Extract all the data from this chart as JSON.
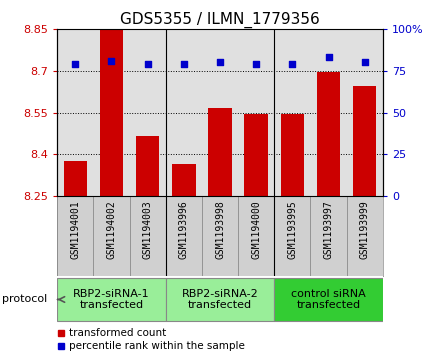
{
  "title": "GDS5355 / ILMN_1779356",
  "samples": [
    "GSM1194001",
    "GSM1194002",
    "GSM1194003",
    "GSM1193996",
    "GSM1193998",
    "GSM1194000",
    "GSM1193995",
    "GSM1193997",
    "GSM1193999"
  ],
  "bar_values": [
    8.375,
    8.845,
    8.465,
    8.365,
    8.565,
    8.545,
    8.545,
    8.695,
    8.645
  ],
  "percentile_values": [
    79,
    81,
    79,
    79,
    80,
    79,
    79,
    83,
    80
  ],
  "ylim_left": [
    8.25,
    8.85
  ],
  "ylim_right": [
    0,
    100
  ],
  "yticks_left": [
    8.25,
    8.4,
    8.55,
    8.7,
    8.85
  ],
  "yticks_left_labels": [
    "8.25",
    "8.4",
    "8.55",
    "8.7",
    "8.85"
  ],
  "yticks_right": [
    0,
    25,
    50,
    75,
    100
  ],
  "yticks_right_labels": [
    "0",
    "25",
    "50",
    "75",
    "100%"
  ],
  "bar_color": "#cc0000",
  "dot_color": "#0000cc",
  "groups": [
    {
      "label": "RBP2-siRNA-1\ntransfected",
      "indices": [
        0,
        1,
        2
      ],
      "color": "#99ee99"
    },
    {
      "label": "RBP2-siRNA-2\ntransfected",
      "indices": [
        3,
        4,
        5
      ],
      "color": "#99ee99"
    },
    {
      "label": "control siRNA\ntransfected",
      "indices": [
        6,
        7,
        8
      ],
      "color": "#33cc33"
    }
  ],
  "protocol_label": "protocol",
  "legend_bar_label": "transformed count",
  "legend_dot_label": "percentile rank within the sample",
  "background_color": "#ffffff",
  "plot_bg_color": "#e0e0e0",
  "sample_bg_color": "#d0d0d0",
  "title_fontsize": 11,
  "tick_fontsize": 8,
  "sample_fontsize": 7,
  "group_fontsize": 8
}
